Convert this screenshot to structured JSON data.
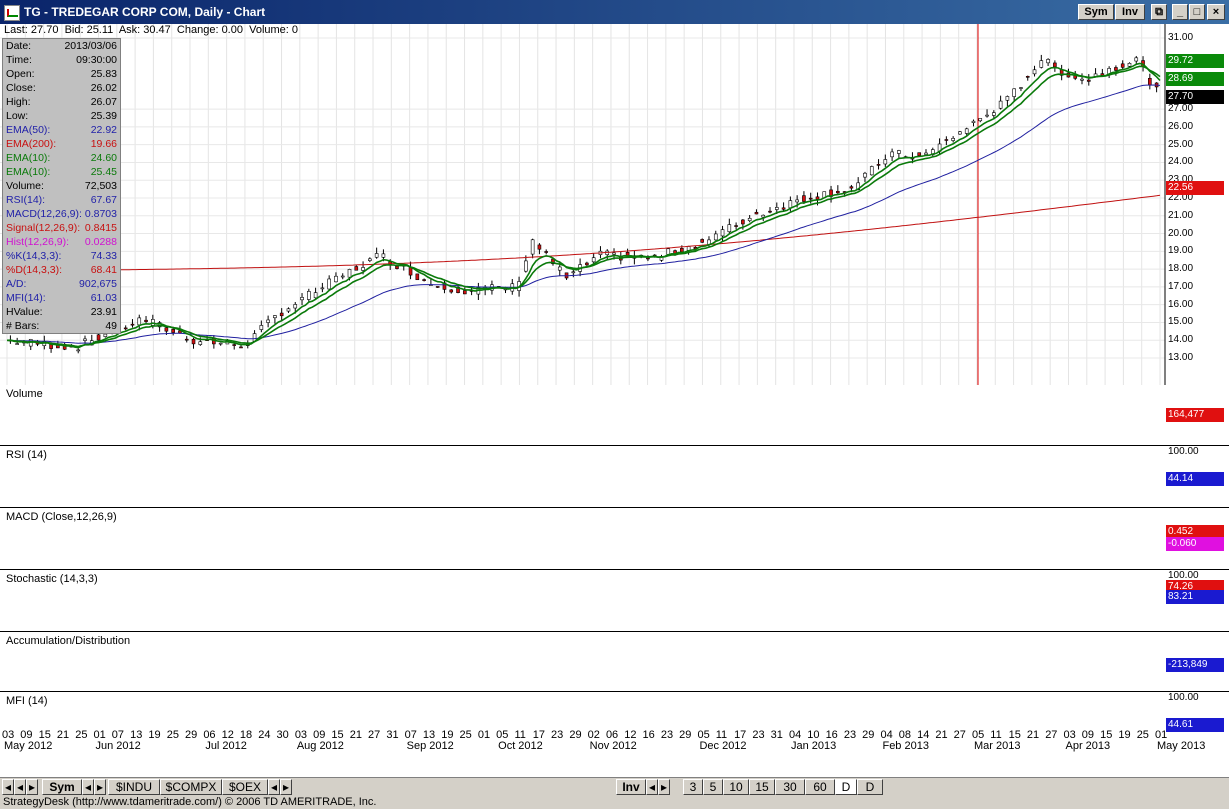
{
  "window": {
    "title": "TG - TREDEGAR CORP COM, Daily - Chart",
    "sym_btn": "Sym",
    "inv_btn": "Inv"
  },
  "quote": {
    "last": "Last: 27.70",
    "bid": "Bid: 25.11",
    "ask": "Ask: 30.47",
    "change": "Change: 0.00",
    "volume": "Volume: 0"
  },
  "info": [
    {
      "k": "Date:",
      "v": "2013/03/06",
      "c": "#000000"
    },
    {
      "k": "Time:",
      "v": "09:30:00",
      "c": "#000000"
    },
    {
      "k": "Open:",
      "v": "25.83",
      "c": "#000000"
    },
    {
      "k": "Close:",
      "v": "26.02",
      "c": "#000000"
    },
    {
      "k": "High:",
      "v": "26.07",
      "c": "#000000"
    },
    {
      "k": "Low:",
      "v": "25.39",
      "c": "#000000"
    },
    {
      "k": "EMA(50):",
      "v": "22.92",
      "c": "#1f1fa8"
    },
    {
      "k": "EMA(200):",
      "v": "19.66",
      "c": "#c81010"
    },
    {
      "k": "EMA(10):",
      "v": "24.60",
      "c": "#0a7a0a"
    },
    {
      "k": "EMA(10):",
      "v": "25.45",
      "c": "#0a7a0a"
    },
    {
      "k": "Volume:",
      "v": "72,503",
      "c": "#000000"
    },
    {
      "k": "RSI(14):",
      "v": "67.67",
      "c": "#1f1fa8"
    },
    {
      "k": "MACD(12,26,9):",
      "v": "0.8703",
      "c": "#1f1fa8"
    },
    {
      "k": "Signal(12,26,9):",
      "v": "0.8415",
      "c": "#c81010"
    },
    {
      "k": "Hist(12,26,9):",
      "v": "0.0288",
      "c": "#d010d0"
    },
    {
      "k": "%K(14,3,3):",
      "v": "74.33",
      "c": "#1f1fa8"
    },
    {
      "k": "%D(14,3,3):",
      "v": "68.41",
      "c": "#c81010"
    },
    {
      "k": "A/D:",
      "v": "902,675",
      "c": "#1f1fa8"
    },
    {
      "k": "MFI(14):",
      "v": "61.03",
      "c": "#1f1fa8"
    },
    {
      "k": "HValue:",
      "v": "23.91",
      "c": "#000000"
    },
    {
      "k": "# Bars:",
      "v": "49",
      "c": "#000000"
    }
  ],
  "price_axis": [
    "31.00",
    "27.00",
    "26.00",
    "25.00",
    "24.00",
    "23.00",
    "22.00",
    "21.00",
    "20.00",
    "19.00",
    "18.00",
    "17.00",
    "16.00",
    "15.00",
    "14.00",
    "13.00"
  ],
  "price_badges": [
    {
      "text": "29.72",
      "bg": "#0a8a0a"
    },
    {
      "text": "28.69",
      "bg": "#0a8a0a"
    },
    {
      "text": "27.70",
      "bg": "#000000"
    },
    {
      "text": "22.56",
      "bg": "#e01010"
    }
  ],
  "panels": {
    "volume": {
      "label": "Volume",
      "badge": "164,477",
      "badge_bg": "#e01010"
    },
    "rsi": {
      "label": "RSI (14)",
      "top": "100.00",
      "badge": "44.14",
      "badge_bg": "#1a1ad0"
    },
    "macd": {
      "label": "MACD (Close,12,26,9)",
      "badge": "0.452",
      "badge_bg": "#e01010",
      "badge2": "-0.060",
      "badge2_bg": "#e010e0"
    },
    "stoch": {
      "label": "Stochastic (14,3,3)",
      "top": "100.00",
      "badge": "74.26",
      "badge_bg": "#e01010",
      "badge2": "83.21",
      "badge2_bg": "#1a1ad0"
    },
    "ad": {
      "label": "Accumulation/Distribution",
      "badge": "-213,849",
      "badge_bg": "#1a1ad0"
    },
    "mfi": {
      "label": "MFI (14)",
      "top": "100.00",
      "badge": "44.61",
      "badge_bg": "#1a1ad0"
    }
  },
  "x_days": [
    "03",
    "09",
    "15",
    "21",
    "25",
    "01",
    "07",
    "13",
    "19",
    "25",
    "29",
    "06",
    "12",
    "18",
    "24",
    "30",
    "03",
    "09",
    "15",
    "21",
    "27",
    "31",
    "07",
    "13",
    "19",
    "25",
    "01",
    "05",
    "11",
    "17",
    "23",
    "29",
    "02",
    "06",
    "12",
    "16",
    "23",
    "29",
    "05",
    "11",
    "17",
    "23",
    "31",
    "04",
    "10",
    "16",
    "23",
    "29",
    "04",
    "08",
    "14",
    "21",
    "27",
    "05",
    "11",
    "15",
    "21",
    "27",
    "03",
    "09",
    "15",
    "19",
    "25",
    "01"
  ],
  "x_months": [
    "May 2012",
    "Jun 2012",
    "Jul 2012",
    "Aug 2012",
    "Sep 2012",
    "Oct 2012",
    "Nov 2012",
    "Dec 2012",
    "Jan 2013",
    "Feb 2013",
    "Mar 2013",
    "Apr 2013",
    "May 2013"
  ],
  "tabs_left": [
    "Sym",
    "$INDU",
    "$COMPX",
    "$OEX"
  ],
  "tabs_right": [
    "Inv",
    "3",
    "5",
    "10",
    "15",
    "30",
    "60",
    "D",
    "D"
  ],
  "status": "StrategyDesk (http://www.tdameritrade.com/) © 2006 TD AMERITRADE, Inc.",
  "colors": {
    "up": "#0a8a0a",
    "down": "#d01010",
    "ema50": "#2020a0",
    "ema200": "#c01010"
  }
}
